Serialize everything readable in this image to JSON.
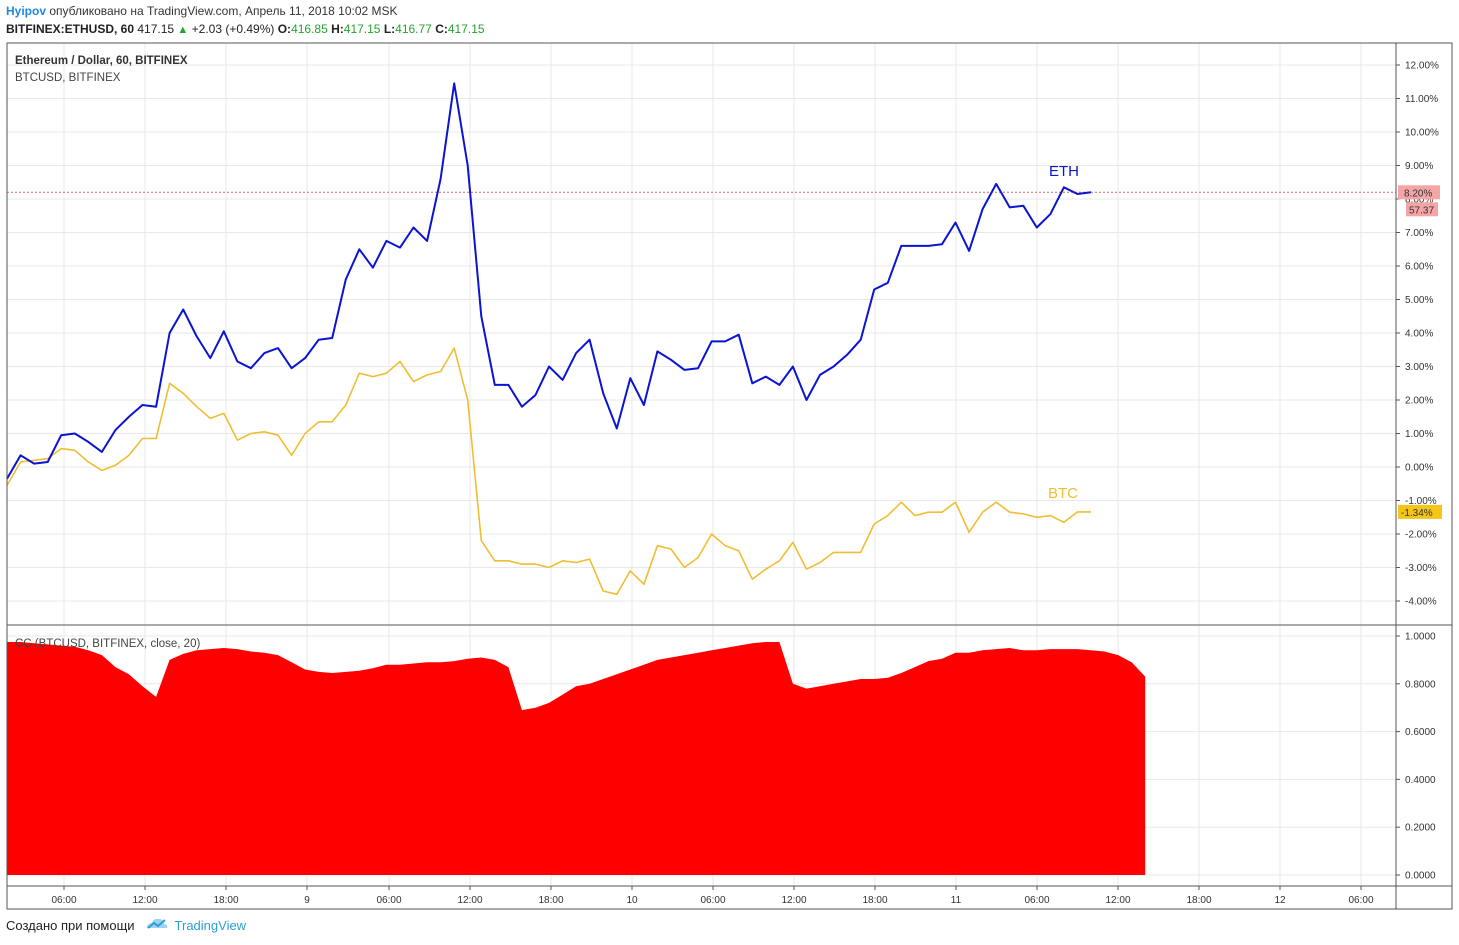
{
  "header": {
    "author": "Hyipov",
    "published_text": "опубликовано на TradingView.com, Апрель 11, 2018 10:02 MSK",
    "symbol": "BITFINEX:ETHUSD, 60",
    "price": "417.15",
    "change": "+2.03 (+0.49%)",
    "o_label": "O:",
    "o_value": "416.85",
    "h_label": "H:",
    "h_value": "417.15",
    "l_label": "L:",
    "l_value": "416.77",
    "c_label": "C:",
    "c_value": "417.15"
  },
  "footer": {
    "created_with": "Создано при помощи",
    "brand": "TradingView",
    "logo_icon": "tradingview-cloud-icon"
  },
  "colors": {
    "eth": "#0a14d2",
    "btc": "#f0be32",
    "cc_fill": "#ff0000",
    "eth_label_bg": "#f4a6a6",
    "btc_label_bg": "#f5c518",
    "grid": "#e8e8e8",
    "border": "#555555"
  },
  "chart_data": [
    {
      "type": "line",
      "title": "Ethereum / Dollar, 60, BITFINEX",
      "subtitle": "BTCUSD, BITFINEX",
      "x_tick_labels": [
        "06:00",
        "12:00",
        "18:00",
        "9",
        "06:00",
        "12:00",
        "18:00",
        "10",
        "06:00",
        "12:00",
        "18:00",
        "11",
        "06:00",
        "12:00",
        "18:00",
        "12",
        "06:00"
      ],
      "y_tick_labels": [
        "12.00%",
        "11.00%",
        "10.00%",
        "9.00%",
        "8.00%",
        "7.00%",
        "6.00%",
        "5.00%",
        "4.00%",
        "3.00%",
        "2.00%",
        "1.00%",
        "0.00%",
        "-1.00%",
        "-2.00%",
        "-3.00%",
        "-4.00%"
      ],
      "ylim": [
        -4.5,
        12.4
      ],
      "grid": true,
      "series": [
        {
          "name": "ETH",
          "unit": "%",
          "last_value_label": "8.20%",
          "last_price_label": "57.37",
          "values": [
            -0.35,
            0.35,
            0.1,
            0.15,
            0.95,
            1.0,
            0.75,
            0.45,
            1.1,
            1.5,
            1.85,
            1.8,
            4.0,
            4.7,
            3.9,
            3.25,
            4.05,
            3.15,
            2.95,
            3.4,
            3.55,
            2.95,
            3.25,
            3.8,
            3.85,
            5.6,
            6.5,
            5.95,
            6.75,
            6.55,
            7.15,
            6.75,
            8.6,
            11.45,
            9.0,
            4.5,
            2.45,
            2.45,
            1.8,
            2.15,
            3.0,
            2.6,
            3.4,
            3.8,
            2.2,
            1.15,
            2.65,
            1.85,
            3.45,
            3.2,
            2.9,
            2.95,
            3.75,
            3.75,
            3.95,
            2.5,
            2.7,
            2.45,
            3.0,
            2.0,
            2.75,
            3.0,
            3.35,
            3.8,
            5.3,
            5.5,
            6.6,
            6.6,
            6.6,
            6.65,
            7.3,
            6.45,
            7.7,
            8.45,
            7.75,
            7.8,
            7.15,
            7.55,
            8.35,
            8.15,
            8.2
          ]
        },
        {
          "name": "BTC",
          "unit": "%",
          "last_value_label": "-1.34%",
          "values": [
            -0.55,
            0.15,
            0.2,
            0.25,
            0.55,
            0.5,
            0.15,
            -0.1,
            0.05,
            0.35,
            0.85,
            0.85,
            2.5,
            2.2,
            1.8,
            1.45,
            1.6,
            0.8,
            1.0,
            1.05,
            0.95,
            0.35,
            1.0,
            1.35,
            1.35,
            1.85,
            2.8,
            2.7,
            2.8,
            3.15,
            2.55,
            2.75,
            2.85,
            3.55,
            2.0,
            -2.2,
            -2.8,
            -2.8,
            -2.9,
            -2.9,
            -3.0,
            -2.8,
            -2.85,
            -2.75,
            -3.7,
            -3.8,
            -3.1,
            -3.5,
            -2.35,
            -2.45,
            -3.0,
            -2.7,
            -2.0,
            -2.35,
            -2.5,
            -3.35,
            -3.05,
            -2.8,
            -2.25,
            -3.05,
            -2.85,
            -2.55,
            -2.55,
            -2.55,
            -1.7,
            -1.45,
            -1.05,
            -1.45,
            -1.35,
            -1.35,
            -1.05,
            -1.95,
            -1.35,
            -1.05,
            -1.35,
            -1.4,
            -1.5,
            -1.45,
            -1.65,
            -1.34,
            -1.34
          ]
        }
      ]
    },
    {
      "type": "area",
      "title": "CC (BTCUSD, BITFINEX, close, 20)",
      "y_tick_labels": [
        "1.0000",
        "0.8000",
        "0.6000",
        "0.4000",
        "0.2000",
        "0.0000"
      ],
      "ylim": [
        -0.02,
        1.03
      ],
      "grid": true,
      "series": [
        {
          "name": "CC",
          "values": [
            0.975,
            0.975,
            0.97,
            0.965,
            0.96,
            0.955,
            0.94,
            0.92,
            0.87,
            0.84,
            0.79,
            0.745,
            0.9,
            0.925,
            0.94,
            0.945,
            0.95,
            0.945,
            0.935,
            0.93,
            0.92,
            0.89,
            0.86,
            0.85,
            0.845,
            0.85,
            0.855,
            0.865,
            0.88,
            0.88,
            0.885,
            0.89,
            0.89,
            0.895,
            0.905,
            0.91,
            0.9,
            0.87,
            0.69,
            0.7,
            0.72,
            0.755,
            0.79,
            0.8,
            0.82,
            0.84,
            0.86,
            0.88,
            0.9,
            0.91,
            0.92,
            0.93,
            0.94,
            0.95,
            0.96,
            0.97,
            0.975,
            0.975,
            0.8,
            0.78,
            0.79,
            0.8,
            0.81,
            0.82,
            0.82,
            0.825,
            0.845,
            0.87,
            0.895,
            0.905,
            0.93,
            0.93,
            0.94,
            0.945,
            0.95,
            0.94,
            0.94,
            0.945,
            0.945,
            0.945,
            0.94,
            0.935,
            0.92,
            0.89,
            0.83
          ]
        }
      ]
    }
  ]
}
